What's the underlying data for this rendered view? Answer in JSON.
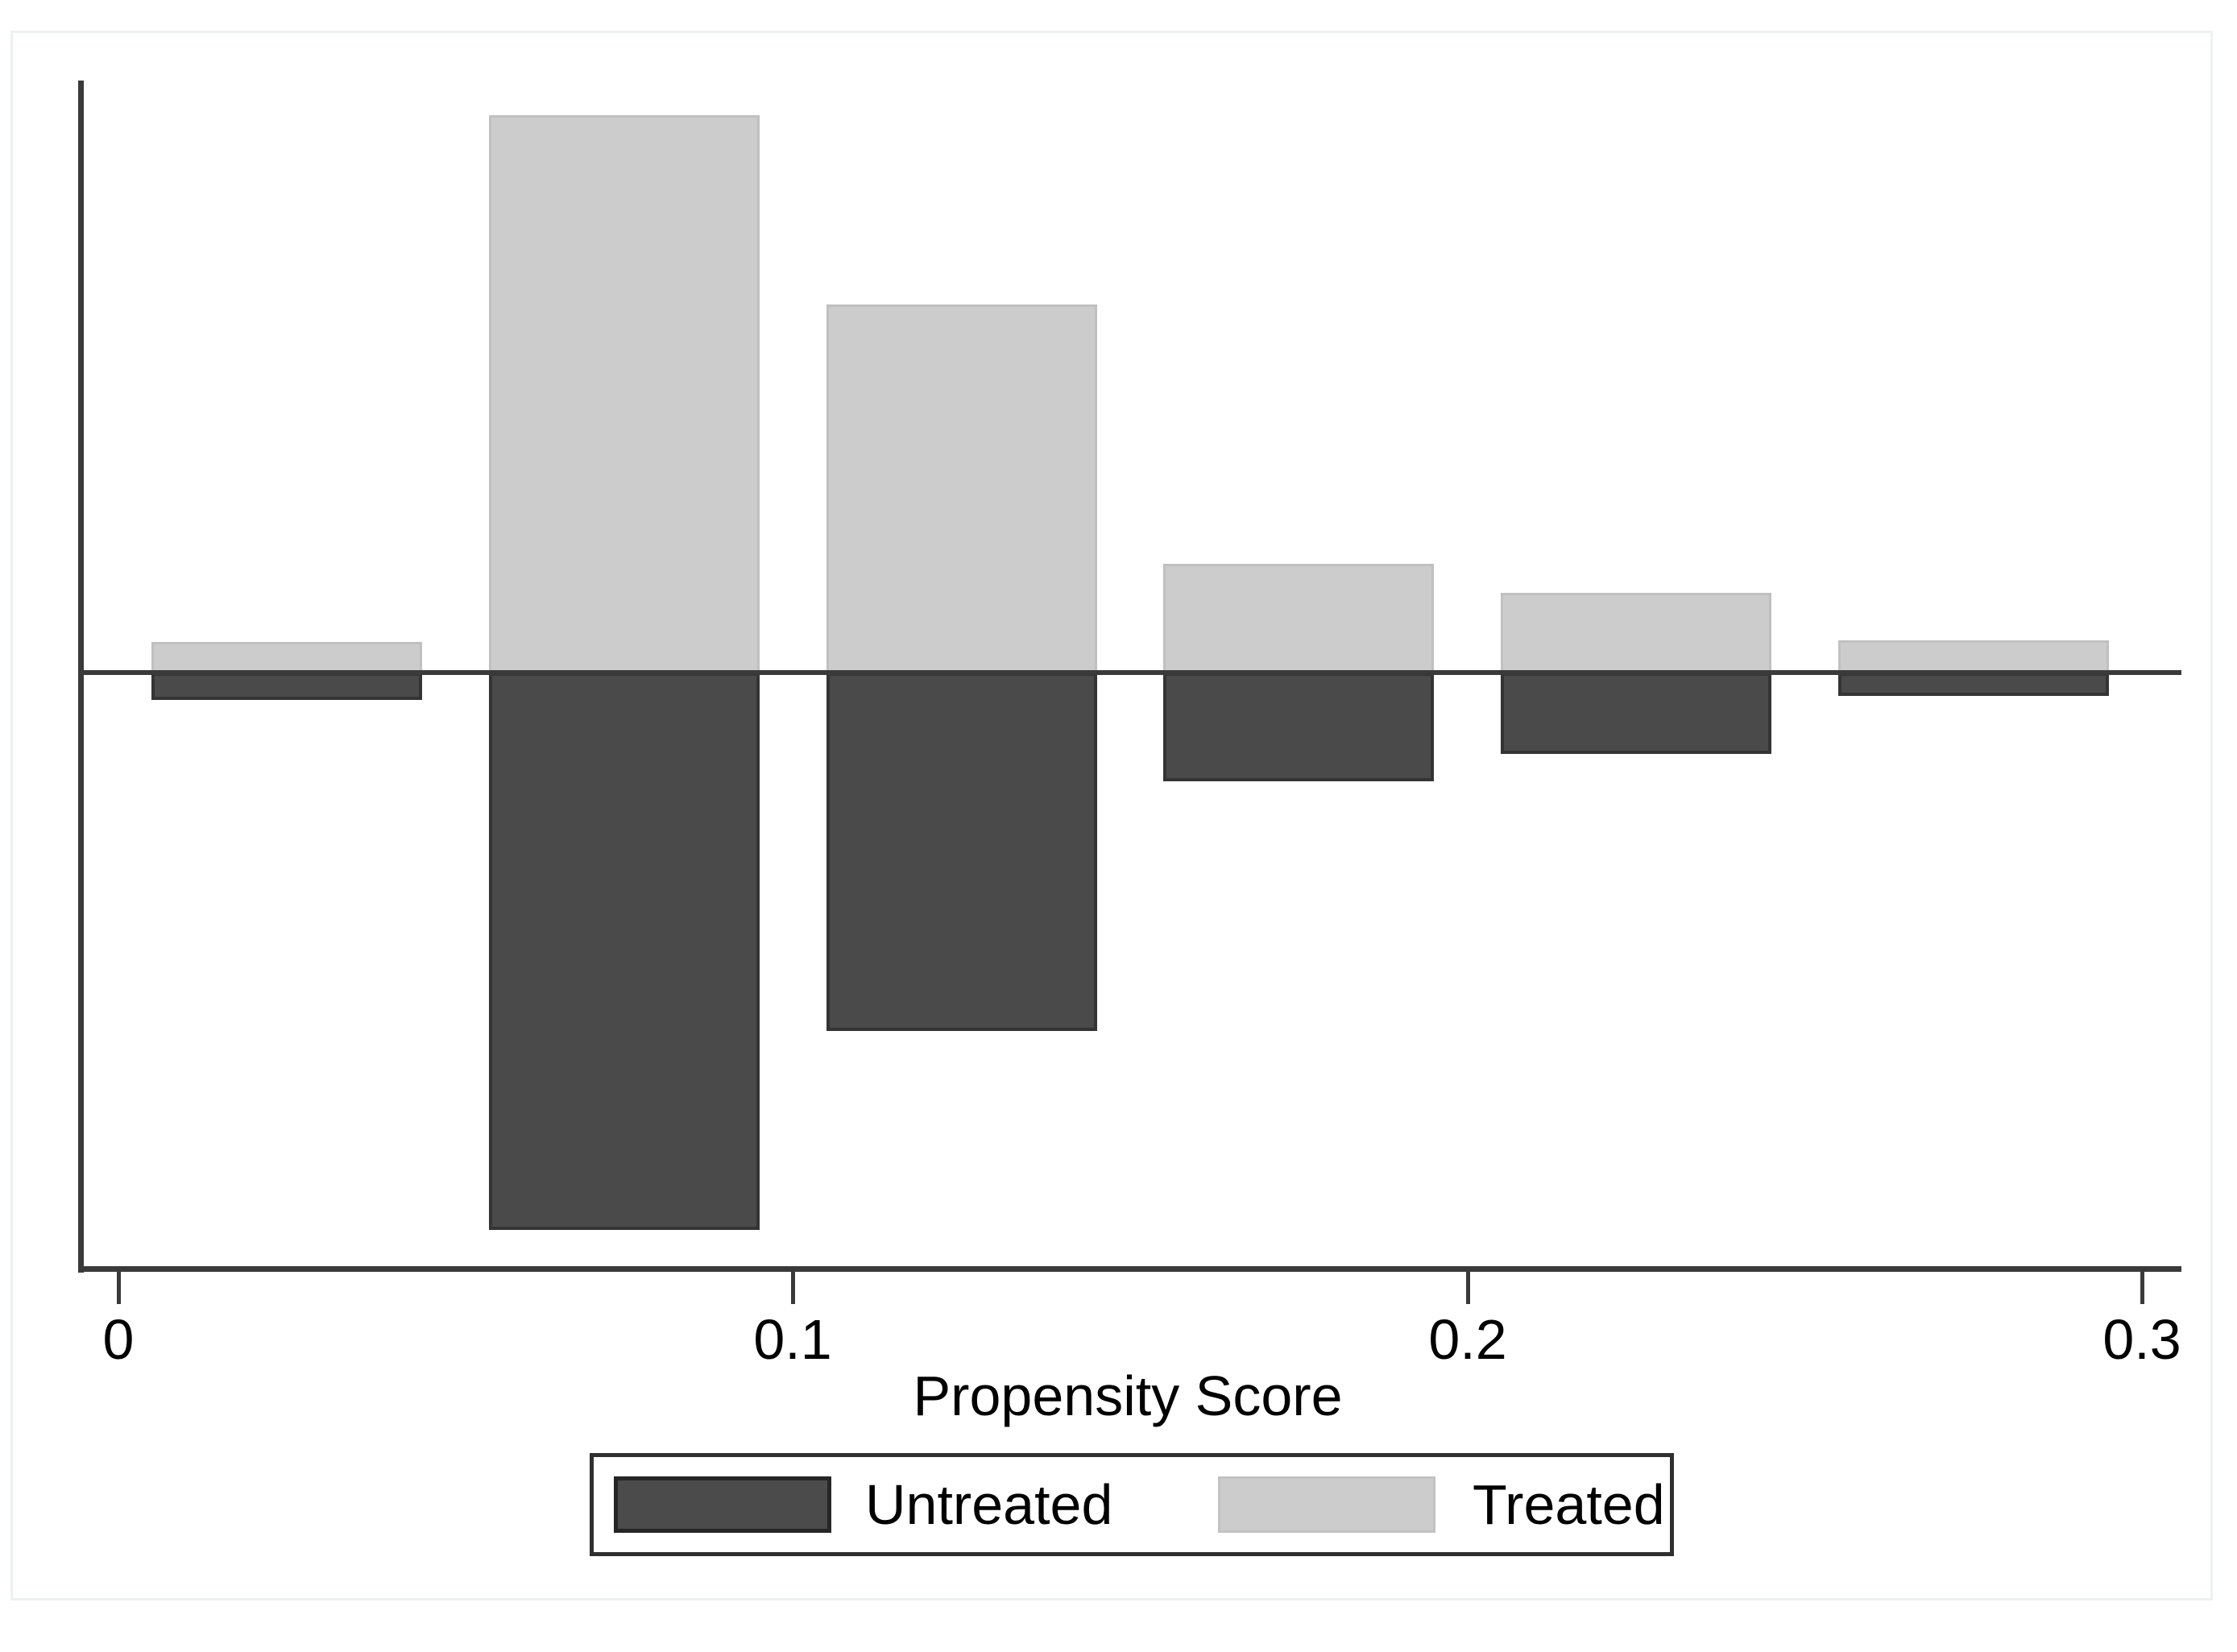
{
  "figure": {
    "background": "#ffffff",
    "frame_color": "#edf1f2"
  },
  "chart_data": {
    "type": "bar",
    "variant": "mirrored-histogram (propensity score overlap plot, Stata psgraph style)",
    "title": "",
    "xlabel": "Propensity Score",
    "ylabel": "",
    "x_axis": {
      "tick_values": [
        0,
        0.1,
        0.2,
        0.3
      ],
      "tick_labels": [
        "0",
        "0.1",
        "0.2",
        "0.3"
      ],
      "range_shown": [
        0,
        0.3
      ]
    },
    "y_axis": {
      "tick_labels": [],
      "note": "no y-axis scale is drawn; values below are bar heights relative to the tallest bar = 1.0"
    },
    "bin_centers": [
      0.025,
      0.075,
      0.125,
      0.175,
      0.225,
      0.275
    ],
    "bin_width": 0.05,
    "bar_width": 0.04,
    "grid": "off",
    "legend_position": "bottom",
    "series": [
      {
        "name": "Treated",
        "direction": "above zero line",
        "fill": "#cccccc",
        "border": "#c0c0c0",
        "values": [
          0.055,
          1.0,
          0.66,
          0.195,
          0.143,
          0.058
        ]
      },
      {
        "name": "Untreated",
        "direction": "below zero line",
        "fill": "#4a4a4a",
        "border": "#343434",
        "values": [
          0.049,
          1.0,
          0.643,
          0.195,
          0.146,
          0.042
        ]
      }
    ],
    "axis_color": "#3a3a3a",
    "text_color": "#000000"
  },
  "legend": {
    "items": [
      {
        "label": "Untreated",
        "swatch_fill": "#4b4b4b",
        "swatch_border": "#262626"
      },
      {
        "label": "Treated",
        "swatch_fill": "#cccccc",
        "swatch_border": "#c2c2c2"
      }
    ]
  }
}
